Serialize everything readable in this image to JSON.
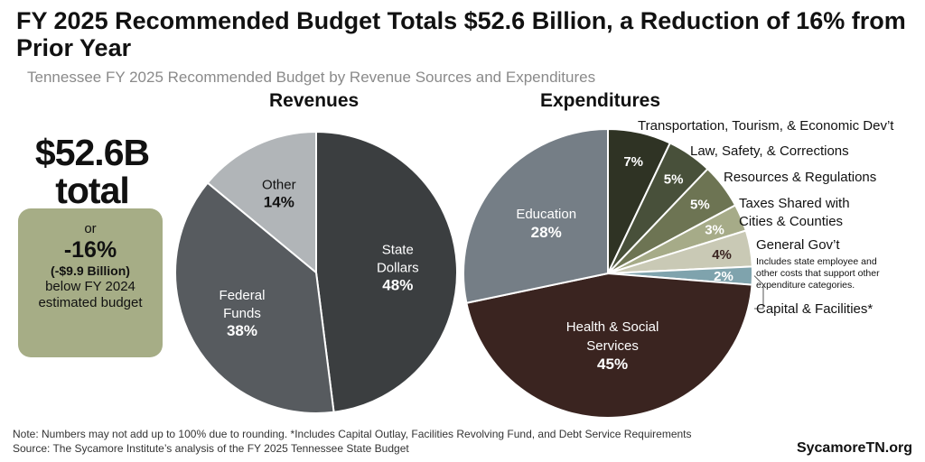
{
  "title": "FY 2025 Recommended Budget Totals $52.6 Billion, a Reduction of 16% from Prior Year",
  "subtitle": "Tennessee FY 2025 Recommended Budget by Revenue Sources and Expenditures",
  "total": {
    "value_line": "$52.6B",
    "label_line": "total"
  },
  "change": {
    "or": "or",
    "pct": "-16%",
    "amount": "(-$9.9 Billion)",
    "desc": "below FY 2024 estimated budget"
  },
  "chart_data": [
    {
      "type": "pie",
      "title": "Revenues",
      "slices": [
        {
          "label_lines": [
            "State",
            "Dollars"
          ],
          "value": 48,
          "value_label": "48%",
          "color": "#3b3e40",
          "text_color": "#ffffff"
        },
        {
          "label_lines": [
            "Federal",
            "Funds"
          ],
          "value": 38,
          "value_label": "38%",
          "color": "#575b5f",
          "text_color": "#ffffff"
        },
        {
          "label_lines": [
            "Other"
          ],
          "value": 14,
          "value_label": "14%",
          "color": "#b1b5b8",
          "text_color": "#111111"
        }
      ]
    },
    {
      "type": "pie",
      "title": "Expenditures",
      "slices": [
        {
          "label_lines": [
            "Transportation, Tourism, & Economic Dev’t"
          ],
          "value": 7,
          "value_label": "7%",
          "color": "#2f3324",
          "text_color": "#ffffff"
        },
        {
          "label_lines": [
            "Law, Safety, & Corrections"
          ],
          "value": 5,
          "value_label": "5%",
          "color": "#48503a",
          "text_color": "#ffffff"
        },
        {
          "label_lines": [
            "Resources & Regulations"
          ],
          "value": 5,
          "value_label": "5%",
          "color": "#6d7453",
          "text_color": "#ffffff"
        },
        {
          "label_lines": [
            "Taxes Shared with",
            "Cities & Counties"
          ],
          "value": 3,
          "value_label": "3%",
          "color": "#a6ab88",
          "text_color": "#ffffff"
        },
        {
          "label_lines": [
            "General Gov’t"
          ],
          "note_lines": [
            "Includes state employee and",
            "other costs that support other",
            "expenditure categories."
          ],
          "value": 4,
          "value_label": "4%",
          "color": "#c9c9b5",
          "text_color": "#3a2420"
        },
        {
          "label_lines": [
            "Capital & Facilities*"
          ],
          "value": 2,
          "value_label": "2%",
          "color": "#7fa3ad",
          "text_color": "#ffffff"
        },
        {
          "label_lines": [
            "Health & Social",
            "Services"
          ],
          "value": 45,
          "value_label": "45%",
          "color": "#3a2420",
          "text_color": "#ffffff"
        },
        {
          "label_lines": [
            "Education"
          ],
          "value": 28,
          "value_label": "28%",
          "color": "#757e86",
          "text_color": "#ffffff"
        }
      ]
    }
  ],
  "note": "Note: Numbers may not add up to 100% due to rounding. *Includes Capital Outlay, Facilities Revolving Fund, and Debt Service Requirements",
  "source": "Source: The Sycamore Institute’s analysis of the FY 2025 Tennessee State Budget",
  "brand": "SycamoreTN.org"
}
